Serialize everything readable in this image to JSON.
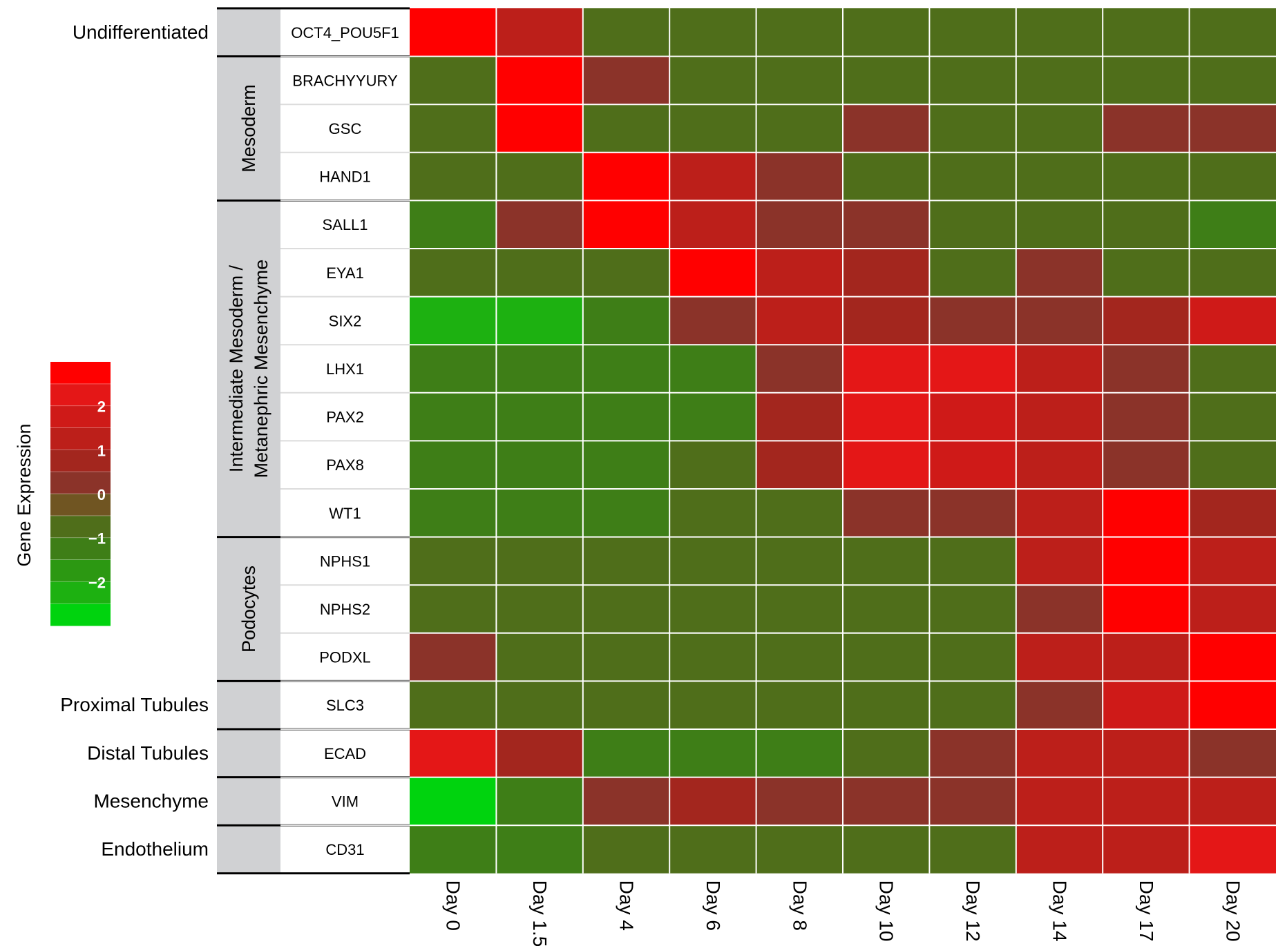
{
  "chart_data": {
    "type": "heatmap",
    "columns": [
      "Day 0",
      "Day 1.5",
      "Day 4",
      "Day 6",
      "Day 8",
      "Day 10",
      "Day 12",
      "Day 14",
      "Day 17",
      "Day 20"
    ],
    "rows": [
      "OCT4_POU5F1",
      "BRACHYYURY",
      "GSC",
      "HAND1",
      "SALL1",
      "EYA1",
      "SIX2",
      "LHX1",
      "PAX2",
      "PAX8",
      "WT1",
      "NPHS1",
      "NPHS2",
      "PODXL",
      "SLC3",
      "ECAD",
      "VIM",
      "CD31"
    ],
    "groups": [
      {
        "label": "Undifferentiated",
        "lines": [
          "Undifferentiated"
        ],
        "orientation": "horizontal",
        "start": 0,
        "end": 0
      },
      {
        "label": "Mesoderm",
        "lines": [
          "Mesoderm"
        ],
        "orientation": "vertical",
        "start": 1,
        "end": 3
      },
      {
        "label": "Intermediate Mesoderm / Metanephric Mesenchyme",
        "lines": [
          "Intermediate Mesoderm /",
          "Metanephric Mesenchyme"
        ],
        "orientation": "vertical",
        "start": 4,
        "end": 10
      },
      {
        "label": "Podocytes",
        "lines": [
          "Podocytes"
        ],
        "orientation": "vertical",
        "start": 11,
        "end": 13
      },
      {
        "label": "Proximal Tubules",
        "lines": [
          "Proximal Tubules"
        ],
        "orientation": "horizontal",
        "start": 14,
        "end": 14
      },
      {
        "label": "Distal Tubules",
        "lines": [
          "Distal Tubules"
        ],
        "orientation": "horizontal",
        "start": 15,
        "end": 15
      },
      {
        "label": "Mesenchyme",
        "lines": [
          "Mesenchyme"
        ],
        "orientation": "horizontal",
        "start": 16,
        "end": 16
      },
      {
        "label": "Endothelium",
        "lines": [
          "Endothelium"
        ],
        "orientation": "horizontal",
        "start": 17,
        "end": 17
      }
    ],
    "values": [
      [
        3.0,
        1.5,
        -0.5,
        -0.5,
        -0.5,
        -0.5,
        -0.5,
        -0.5,
        -0.5,
        -0.5
      ],
      [
        -0.5,
        3.0,
        0.5,
        -0.5,
        -0.5,
        -0.5,
        -0.5,
        -0.5,
        -0.5,
        -0.5
      ],
      [
        -0.5,
        3.0,
        -0.5,
        -0.5,
        -0.5,
        0.5,
        -0.5,
        -0.5,
        0.5,
        0.5
      ],
      [
        -0.5,
        -0.5,
        3.0,
        1.5,
        0.5,
        -0.5,
        -0.5,
        -0.5,
        -0.5,
        -0.5
      ],
      [
        -1.0,
        0.5,
        3.0,
        1.5,
        0.5,
        0.5,
        -0.5,
        -0.5,
        -0.5,
        -1.0
      ],
      [
        -0.5,
        -0.5,
        -0.5,
        3.0,
        1.5,
        1.0,
        -0.5,
        0.5,
        -0.5,
        -0.5
      ],
      [
        -2.0,
        -2.0,
        -1.0,
        0.5,
        1.5,
        1.0,
        0.5,
        0.5,
        1.0,
        2.0
      ],
      [
        -1.0,
        -1.0,
        -1.0,
        -1.0,
        0.5,
        2.5,
        2.5,
        1.5,
        0.5,
        -0.5
      ],
      [
        -1.0,
        -1.0,
        -1.0,
        -1.0,
        1.0,
        2.5,
        2.0,
        1.5,
        0.5,
        -0.5
      ],
      [
        -1.0,
        -1.0,
        -1.0,
        -0.5,
        1.0,
        2.5,
        2.0,
        1.5,
        0.5,
        -0.5
      ],
      [
        -1.0,
        -1.0,
        -1.0,
        -0.5,
        -0.5,
        0.5,
        0.5,
        1.5,
        3.0,
        1.0
      ],
      [
        -0.5,
        -0.5,
        -0.5,
        -0.5,
        -0.5,
        -0.5,
        -0.5,
        1.5,
        3.0,
        1.5
      ],
      [
        -0.5,
        -0.5,
        -0.5,
        -0.5,
        -0.5,
        -0.5,
        -0.5,
        0.5,
        3.0,
        1.5
      ],
      [
        0.5,
        -0.5,
        -0.5,
        -0.5,
        -0.5,
        -0.5,
        -0.5,
        1.5,
        1.5,
        3.0
      ],
      [
        -0.5,
        -0.5,
        -0.5,
        -0.5,
        -0.5,
        -0.5,
        -0.5,
        0.5,
        2.0,
        3.0
      ],
      [
        2.5,
        1.0,
        -1.0,
        -1.0,
        -1.0,
        -0.5,
        0.5,
        1.5,
        1.5,
        0.5
      ],
      [
        -2.5,
        -1.0,
        0.5,
        1.0,
        0.5,
        0.5,
        0.5,
        1.5,
        1.5,
        1.5
      ],
      [
        -1.0,
        -1.0,
        -0.5,
        -0.5,
        -0.5,
        -0.5,
        -0.5,
        1.5,
        1.5,
        2.5
      ]
    ],
    "color_scale": {
      "title": "Gene Expression",
      "ticks": [
        2,
        1,
        0,
        -1,
        -2
      ],
      "tick_labels": [
        "2",
        "1",
        "0",
        "−1",
        "−2"
      ],
      "range": [
        -3,
        3
      ],
      "colors": [
        "#ff0000",
        "#e41717",
        "#cf1a18",
        "#bc1f1a",
        "#a3261e",
        "#8b3329",
        "#705522",
        "#4f6e1a",
        "#3e7e17",
        "#2c9812",
        "#1db111",
        "#00d30e"
      ]
    }
  }
}
